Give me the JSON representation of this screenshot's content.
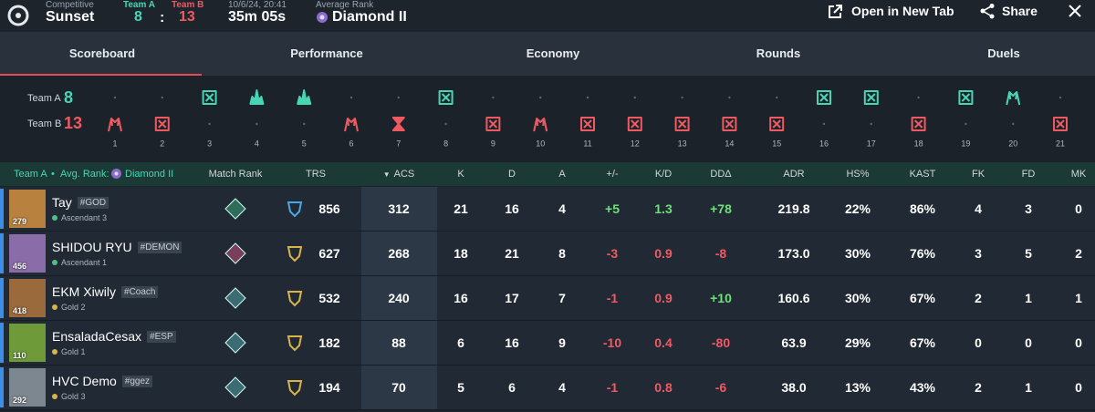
{
  "header": {
    "mode": "Competitive",
    "map": "Sunset",
    "team_a_label": "Team A",
    "team_a_score": "8",
    "separator": ":",
    "team_b_label": "Team B",
    "team_b_score": "13",
    "date": "10/6/24, 20:41",
    "duration": "35m 05s",
    "avg_rank_label": "Average Rank",
    "avg_rank": "Diamond II",
    "open_tab": "Open in New Tab",
    "share": "Share"
  },
  "tabs": [
    "Scoreboard",
    "Performance",
    "Economy",
    "Rounds",
    "Duels"
  ],
  "timeline": {
    "team_a_label": "Team A",
    "team_a_score": "8",
    "team_b_label": "Team B",
    "team_b_score": "13",
    "rounds": [
      {
        "label": "1",
        "color": "#ef5a62",
        "row": "b",
        "icon": "spike"
      },
      {
        "label": "2",
        "color": "#ef5a62",
        "row": "b",
        "icon": "elim"
      },
      {
        "label": "3",
        "color": "#46d6b6",
        "row": "a",
        "icon": "elim"
      },
      {
        "label": "4",
        "color": "#46d6b6",
        "row": "a",
        "icon": "boom"
      },
      {
        "label": "5",
        "color": "#46d6b6",
        "row": "a",
        "icon": "boom"
      },
      {
        "label": "6",
        "color": "#ef5a62",
        "row": "b",
        "icon": "spike"
      },
      {
        "label": "7",
        "color": "#ef5a62",
        "row": "b",
        "icon": "time"
      },
      {
        "label": "8",
        "color": "#46d6b6",
        "row": "a",
        "icon": "elim"
      },
      {
        "label": "9",
        "color": "#ef5a62",
        "row": "b",
        "icon": "elim"
      },
      {
        "label": "10",
        "color": "#ef5a62",
        "row": "b",
        "icon": "spike"
      },
      {
        "label": "11",
        "color": "#ef5a62",
        "row": "b",
        "icon": "elim"
      },
      {
        "label": "12",
        "color": "#ef5a62",
        "row": "b",
        "icon": "elim"
      },
      {
        "label": "13",
        "color": "#ef5a62",
        "row": "b",
        "icon": "elim"
      },
      {
        "label": "14",
        "color": "#ef5a62",
        "row": "b",
        "icon": "elim"
      },
      {
        "label": "15",
        "color": "#ef5a62",
        "row": "b",
        "icon": "elim"
      },
      {
        "label": "16",
        "color": "#46d6b6",
        "row": "a",
        "icon": "elim"
      },
      {
        "label": "17",
        "color": "#46d6b6",
        "row": "a",
        "icon": "elim"
      },
      {
        "label": "18",
        "color": "#ef5a62",
        "row": "b",
        "icon": "elim"
      },
      {
        "label": "19",
        "color": "#46d6b6",
        "row": "a",
        "icon": "elim"
      },
      {
        "label": "20",
        "color": "#46d6b6",
        "row": "a",
        "icon": "spike"
      },
      {
        "label": "21",
        "color": "#ef5a62",
        "row": "b",
        "icon": "elim"
      }
    ]
  },
  "table": {
    "team": "Team A",
    "bullet": "•",
    "avg_rank_label": "Avg. Rank:",
    "avg_rank": "Diamond II",
    "columns": [
      "Match Rank",
      "TRS",
      "ACS",
      "K",
      "D",
      "A",
      "+/-",
      "K/D",
      "DDΔ",
      "ADR",
      "HS%",
      "KAST",
      "FK",
      "FD",
      "MK"
    ],
    "players": [
      {
        "name": "Tay",
        "tag": "#GOD",
        "rank": "Ascendant 3",
        "level": "279",
        "avatar": "#b8813e",
        "cells": [
          "856",
          "312",
          "21",
          "16",
          "4",
          "+5",
          "1.3",
          "+78",
          "219.8",
          "22%",
          "86%",
          "4",
          "3",
          "0"
        ]
      },
      {
        "name": "SHIDOU RYU",
        "tag": "#DEMON",
        "rank": "Ascendant 1",
        "level": "456",
        "avatar": "#8a6ca8",
        "cells": [
          "627",
          "268",
          "18",
          "21",
          "8",
          "-3",
          "0.9",
          "-8",
          "173.0",
          "30%",
          "76%",
          "3",
          "5",
          "2"
        ]
      },
      {
        "name": "EKM Xiwily",
        "tag": "#Coach",
        "rank": "Gold 2",
        "level": "418",
        "avatar": "#9a6a3c",
        "cells": [
          "532",
          "240",
          "16",
          "17",
          "7",
          "-1",
          "0.9",
          "+10",
          "160.6",
          "30%",
          "67%",
          "2",
          "1",
          "1"
        ]
      },
      {
        "name": "EnsaladaCesax",
        "tag": "#ESP",
        "rank": "Gold 1",
        "level": "110",
        "avatar": "#6f9a3a",
        "cells": [
          "182",
          "88",
          "6",
          "16",
          "9",
          "-10",
          "0.4",
          "-80",
          "63.9",
          "29%",
          "67%",
          "0",
          "0",
          "0"
        ]
      },
      {
        "name": "HVC Demo",
        "tag": "#ggez",
        "rank": "Gold 3",
        "level": "292",
        "avatar": "#7d8790",
        "cells": [
          "194",
          "70",
          "5",
          "6",
          "4",
          "-1",
          "0.8",
          "-6",
          "38.0",
          "13%",
          "43%",
          "2",
          "1",
          "0"
        ]
      }
    ]
  }
}
